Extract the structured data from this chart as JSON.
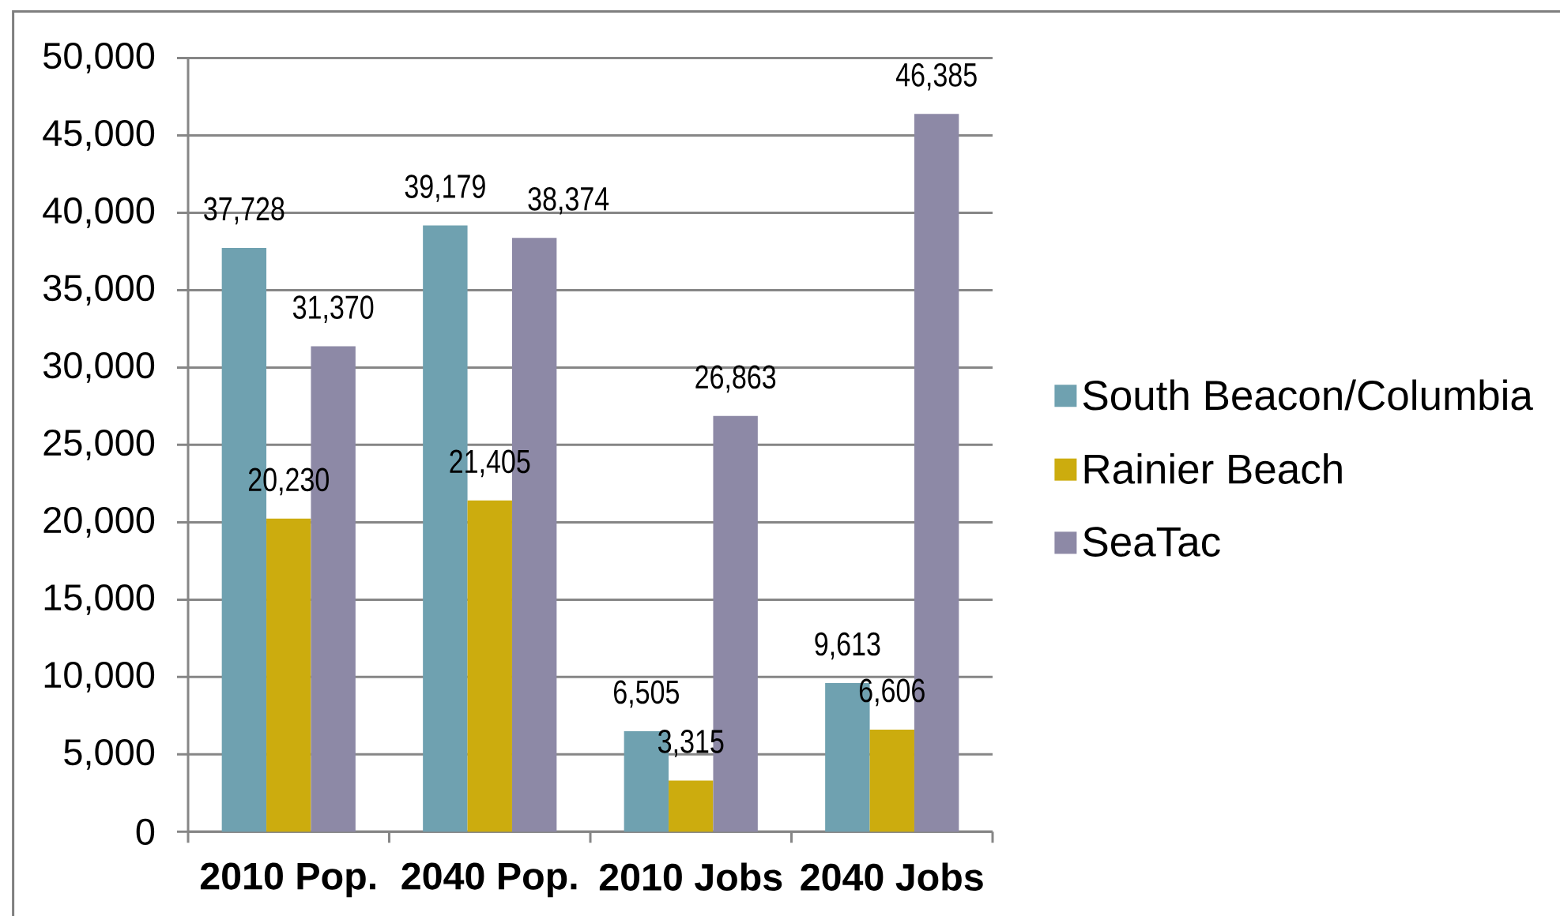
{
  "chart_data": {
    "type": "bar",
    "categories": [
      "2010 Pop.",
      "2040 Pop.",
      "2010 Jobs",
      "2040 Jobs"
    ],
    "series": [
      {
        "name": "South Beacon/Columbia",
        "color": "#6fa1b0",
        "values": [
          37728,
          39179,
          6505,
          9613
        ],
        "value_labels": [
          "37,728",
          "39,179",
          "6,505",
          "9,613"
        ]
      },
      {
        "name": "Rainier Beach",
        "color": "#ccac0e",
        "values": [
          20230,
          21405,
          3315,
          6606
        ],
        "value_labels": [
          "20,230",
          "21,405",
          "3,315",
          "6,606"
        ]
      },
      {
        "name": "SeaTac",
        "color": "#8d89a6",
        "values": [
          31370,
          38374,
          26863,
          46385
        ],
        "value_labels": [
          "31,370",
          "38,374",
          "26,863",
          "46,385"
        ]
      }
    ],
    "ylim": [
      0,
      50000
    ],
    "yticks": [
      0,
      {
        "value": 5000,
        "label": "5,000"
      },
      {
        "value": 10000,
        "label": "10,000"
      },
      {
        "value": 15000,
        "label": "15,000"
      },
      {
        "value": 20000,
        "label": "20,000"
      },
      {
        "value": 25000,
        "label": "25,000"
      },
      {
        "value": 30000,
        "label": "30,000"
      },
      {
        "value": 35000,
        "label": "35,000"
      },
      {
        "value": 40000,
        "label": "40,000"
      },
      {
        "value": 45000,
        "label": "45,000"
      },
      {
        "value": 50000,
        "label": "50,000"
      }
    ],
    "grid": "y",
    "legend": "right"
  }
}
